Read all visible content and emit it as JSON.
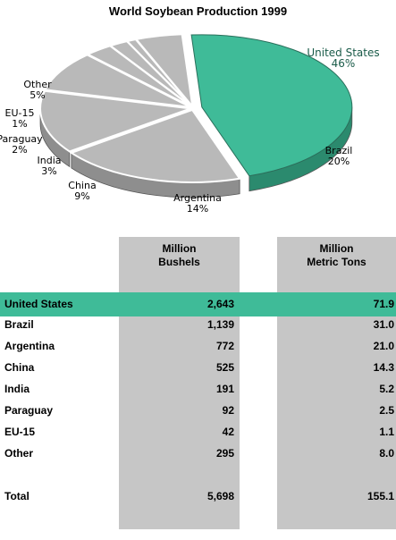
{
  "chart_data": [
    {
      "type": "pie",
      "title": "World Soybean Production 1999",
      "categories": [
        "United States",
        "Brazil",
        "Argentina",
        "China",
        "India",
        "Paraguay",
        "EU-15",
        "Other"
      ],
      "values": [
        46,
        20,
        14,
        9,
        3,
        2,
        1,
        5
      ],
      "value_labels": [
        "46%",
        "20%",
        "14%",
        "9%",
        "3%",
        "2%",
        "1%",
        "5%"
      ],
      "colors": {
        "highlight": "#3fbb98",
        "other": "#b9b9b9",
        "highlight_label": "#1a5b49"
      }
    },
    {
      "type": "table",
      "columns": [
        "",
        "Million\nBushels",
        "Million\nMetric Tons"
      ],
      "rows": [
        {
          "country": "United States",
          "bushels": "2,643",
          "tons": "71.9",
          "highlight": true
        },
        {
          "country": "Brazil",
          "bushels": "1,139",
          "tons": "31.0"
        },
        {
          "country": "Argentina",
          "bushels": "772",
          "tons": "21.0"
        },
        {
          "country": "China",
          "bushels": "525",
          "tons": "14.3"
        },
        {
          "country": "India",
          "bushels": "191",
          "tons": "5.2"
        },
        {
          "country": "Paraguay",
          "bushels": "92",
          "tons": "2.5"
        },
        {
          "country": "EU-15",
          "bushels": "42",
          "tons": "1.1"
        },
        {
          "country": "Other",
          "bushels": "295",
          "tons": "8.0"
        }
      ],
      "total": {
        "country": "Total",
        "bushels": "5,698",
        "tons": "155.1"
      },
      "colors": {
        "column_bg": "#c6c6c6",
        "highlight_row": "#3fbb98"
      }
    }
  ]
}
